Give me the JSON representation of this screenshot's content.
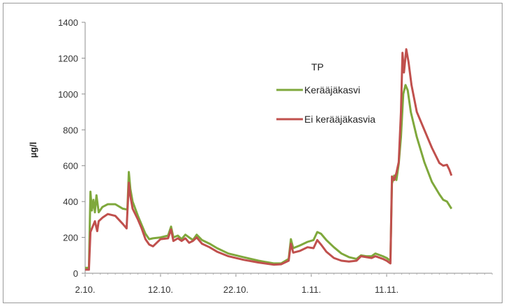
{
  "chart_data": {
    "type": "line",
    "title": "TP",
    "ylabel": "µg/l",
    "xlabel": "",
    "ylim": [
      0,
      1400
    ],
    "yticks": [
      0,
      200,
      400,
      600,
      800,
      1000,
      1200,
      1400
    ],
    "xticks": [
      {
        "label": "2.10.",
        "day": 0
      },
      {
        "label": "12.10.",
        "day": 10
      },
      {
        "label": "22.10.",
        "day": 20
      },
      {
        "label": "1.11.",
        "day": 30
      },
      {
        "label": "11.11.",
        "day": 40
      }
    ],
    "x_unit": "days from 2.10.",
    "legend_position": "upper-right",
    "grid": false,
    "series": [
      {
        "name": "Kerääjäkasvi",
        "color": "#7fa83c",
        "points": [
          [
            0,
            30
          ],
          [
            0.5,
            30
          ],
          [
            0.7,
            455
          ],
          [
            0.9,
            350
          ],
          [
            1.1,
            410
          ],
          [
            1.3,
            340
          ],
          [
            1.5,
            435
          ],
          [
            1.8,
            340
          ],
          [
            2.3,
            370
          ],
          [
            3,
            385
          ],
          [
            4,
            385
          ],
          [
            5,
            360
          ],
          [
            5.6,
            355
          ],
          [
            5.8,
            565
          ],
          [
            6,
            470
          ],
          [
            6.3,
            400
          ],
          [
            7,
            320
          ],
          [
            7.5,
            270
          ],
          [
            8,
            220
          ],
          [
            8.5,
            190
          ],
          [
            9,
            195
          ],
          [
            10,
            200
          ],
          [
            11,
            210
          ],
          [
            11.4,
            260
          ],
          [
            11.7,
            200
          ],
          [
            12.3,
            210
          ],
          [
            12.8,
            190
          ],
          [
            13.3,
            215
          ],
          [
            13.8,
            200
          ],
          [
            14.3,
            185
          ],
          [
            14.8,
            215
          ],
          [
            15.5,
            185
          ],
          [
            16.5,
            165
          ],
          [
            17.5,
            140
          ],
          [
            19,
            110
          ],
          [
            21,
            90
          ],
          [
            23,
            70
          ],
          [
            25,
            55
          ],
          [
            26,
            55
          ],
          [
            27,
            80
          ],
          [
            27.3,
            190
          ],
          [
            27.6,
            140
          ],
          [
            28.5,
            155
          ],
          [
            29.5,
            175
          ],
          [
            30.3,
            185
          ],
          [
            30.8,
            230
          ],
          [
            31.3,
            220
          ],
          [
            32,
            185
          ],
          [
            33,
            145
          ],
          [
            34,
            110
          ],
          [
            35,
            90
          ],
          [
            36,
            80
          ],
          [
            36.6,
            100
          ],
          [
            37.3,
            95
          ],
          [
            38,
            95
          ],
          [
            38.5,
            110
          ],
          [
            39.5,
            95
          ],
          [
            40,
            85
          ],
          [
            40.5,
            70
          ],
          [
            40.7,
            500
          ],
          [
            41,
            545
          ],
          [
            41.3,
            520
          ],
          [
            41.6,
            610
          ],
          [
            41.9,
            760
          ],
          [
            42.2,
            1000
          ],
          [
            42.5,
            1050
          ],
          [
            42.8,
            1020
          ],
          [
            43.2,
            900
          ],
          [
            44,
            760
          ],
          [
            45,
            620
          ],
          [
            46,
            510
          ],
          [
            47,
            440
          ],
          [
            47.5,
            410
          ],
          [
            48,
            400
          ],
          [
            48.6,
            360
          ]
        ]
      },
      {
        "name": "Ei kerääjäkasvia",
        "color": "#c0504d",
        "points": [
          [
            0,
            20
          ],
          [
            0.5,
            20
          ],
          [
            0.7,
            230
          ],
          [
            1,
            260
          ],
          [
            1.3,
            290
          ],
          [
            1.6,
            235
          ],
          [
            1.8,
            290
          ],
          [
            2.3,
            310
          ],
          [
            3,
            330
          ],
          [
            4,
            320
          ],
          [
            5,
            275
          ],
          [
            5.5,
            250
          ],
          [
            5.8,
            505
          ],
          [
            6,
            430
          ],
          [
            6.3,
            360
          ],
          [
            7,
            300
          ],
          [
            7.5,
            250
          ],
          [
            8,
            190
          ],
          [
            8.5,
            160
          ],
          [
            9,
            150
          ],
          [
            10,
            190
          ],
          [
            11,
            195
          ],
          [
            11.4,
            245
          ],
          [
            11.7,
            180
          ],
          [
            12.3,
            195
          ],
          [
            12.8,
            180
          ],
          [
            13.3,
            195
          ],
          [
            13.8,
            170
          ],
          [
            14.3,
            180
          ],
          [
            14.8,
            200
          ],
          [
            15.5,
            165
          ],
          [
            16.5,
            145
          ],
          [
            17.5,
            120
          ],
          [
            19,
            95
          ],
          [
            21,
            75
          ],
          [
            23,
            60
          ],
          [
            25,
            48
          ],
          [
            26,
            50
          ],
          [
            27,
            70
          ],
          [
            27.3,
            165
          ],
          [
            27.6,
            115
          ],
          [
            28.5,
            125
          ],
          [
            29.5,
            145
          ],
          [
            30.3,
            140
          ],
          [
            30.8,
            185
          ],
          [
            31.3,
            160
          ],
          [
            32,
            120
          ],
          [
            33,
            85
          ],
          [
            34,
            70
          ],
          [
            35,
            65
          ],
          [
            36,
            70
          ],
          [
            36.6,
            95
          ],
          [
            37.3,
            90
          ],
          [
            38,
            85
          ],
          [
            38.5,
            95
          ],
          [
            39.5,
            80
          ],
          [
            40,
            70
          ],
          [
            40.5,
            55
          ],
          [
            40.7,
            540
          ],
          [
            41,
            520
          ],
          [
            41.3,
            560
          ],
          [
            41.6,
            620
          ],
          [
            41.9,
            900
          ],
          [
            42.1,
            1230
          ],
          [
            42.3,
            1120
          ],
          [
            42.6,
            1250
          ],
          [
            42.9,
            1180
          ],
          [
            43.3,
            1050
          ],
          [
            44,
            900
          ],
          [
            45,
            800
          ],
          [
            46,
            700
          ],
          [
            47,
            615
          ],
          [
            47.5,
            600
          ],
          [
            48,
            605
          ],
          [
            48.3,
            580
          ],
          [
            48.6,
            545
          ]
        ]
      }
    ]
  }
}
